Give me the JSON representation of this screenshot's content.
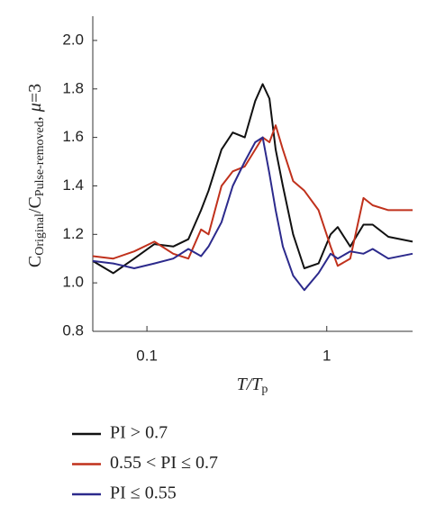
{
  "chart_data": {
    "type": "line",
    "ylabel_parts": [
      "C",
      "Original",
      "/C",
      "Pulse-removed",
      ", ",
      "μ",
      "=3"
    ],
    "xlabel_parts": [
      "T",
      "/T",
      "p"
    ],
    "x": [
      0.05,
      0.065,
      0.085,
      0.11,
      0.14,
      0.17,
      0.2,
      0.22,
      0.26,
      0.3,
      0.35,
      0.4,
      0.44,
      0.48,
      0.52,
      0.57,
      0.65,
      0.75,
      0.9,
      1.05,
      1.15,
      1.35,
      1.6,
      1.8,
      2.2,
      3
    ],
    "series": [
      {
        "name": "PI > 0.7",
        "color": "#111111",
        "values": [
          1.09,
          1.04,
          1.1,
          1.16,
          1.15,
          1.18,
          1.3,
          1.38,
          1.55,
          1.62,
          1.6,
          1.75,
          1.82,
          1.76,
          1.55,
          1.4,
          1.2,
          1.06,
          1.08,
          1.2,
          1.23,
          1.15,
          1.24,
          1.24,
          1.19,
          1.17
        ]
      },
      {
        "name": "0.55 < PI ≤ 0.7",
        "color": "#c0311c",
        "values": [
          1.11,
          1.1,
          1.13,
          1.17,
          1.12,
          1.1,
          1.22,
          1.2,
          1.4,
          1.46,
          1.48,
          1.55,
          1.6,
          1.58,
          1.65,
          1.55,
          1.42,
          1.38,
          1.3,
          1.15,
          1.07,
          1.1,
          1.35,
          1.32,
          1.3,
          1.3
        ]
      },
      {
        "name": "PI ≤ 0.55",
        "color": "#2c2a8c",
        "values": [
          1.09,
          1.08,
          1.06,
          1.08,
          1.1,
          1.14,
          1.11,
          1.15,
          1.25,
          1.4,
          1.5,
          1.58,
          1.6,
          1.45,
          1.3,
          1.15,
          1.03,
          0.97,
          1.04,
          1.12,
          1.1,
          1.13,
          1.12,
          1.14,
          1.1,
          1.12
        ]
      }
    ],
    "xlim": [
      0.05,
      3
    ],
    "xticks": [
      0.1,
      1
    ],
    "xscale": "log",
    "ylim": [
      0.8,
      2.1
    ],
    "yticks": [
      0.8,
      {
        "value": 1,
        "label": "1.0"
      },
      1.2,
      1.4,
      1.6,
      1.8,
      {
        "value": 2,
        "label": "2.0"
      }
    ]
  }
}
